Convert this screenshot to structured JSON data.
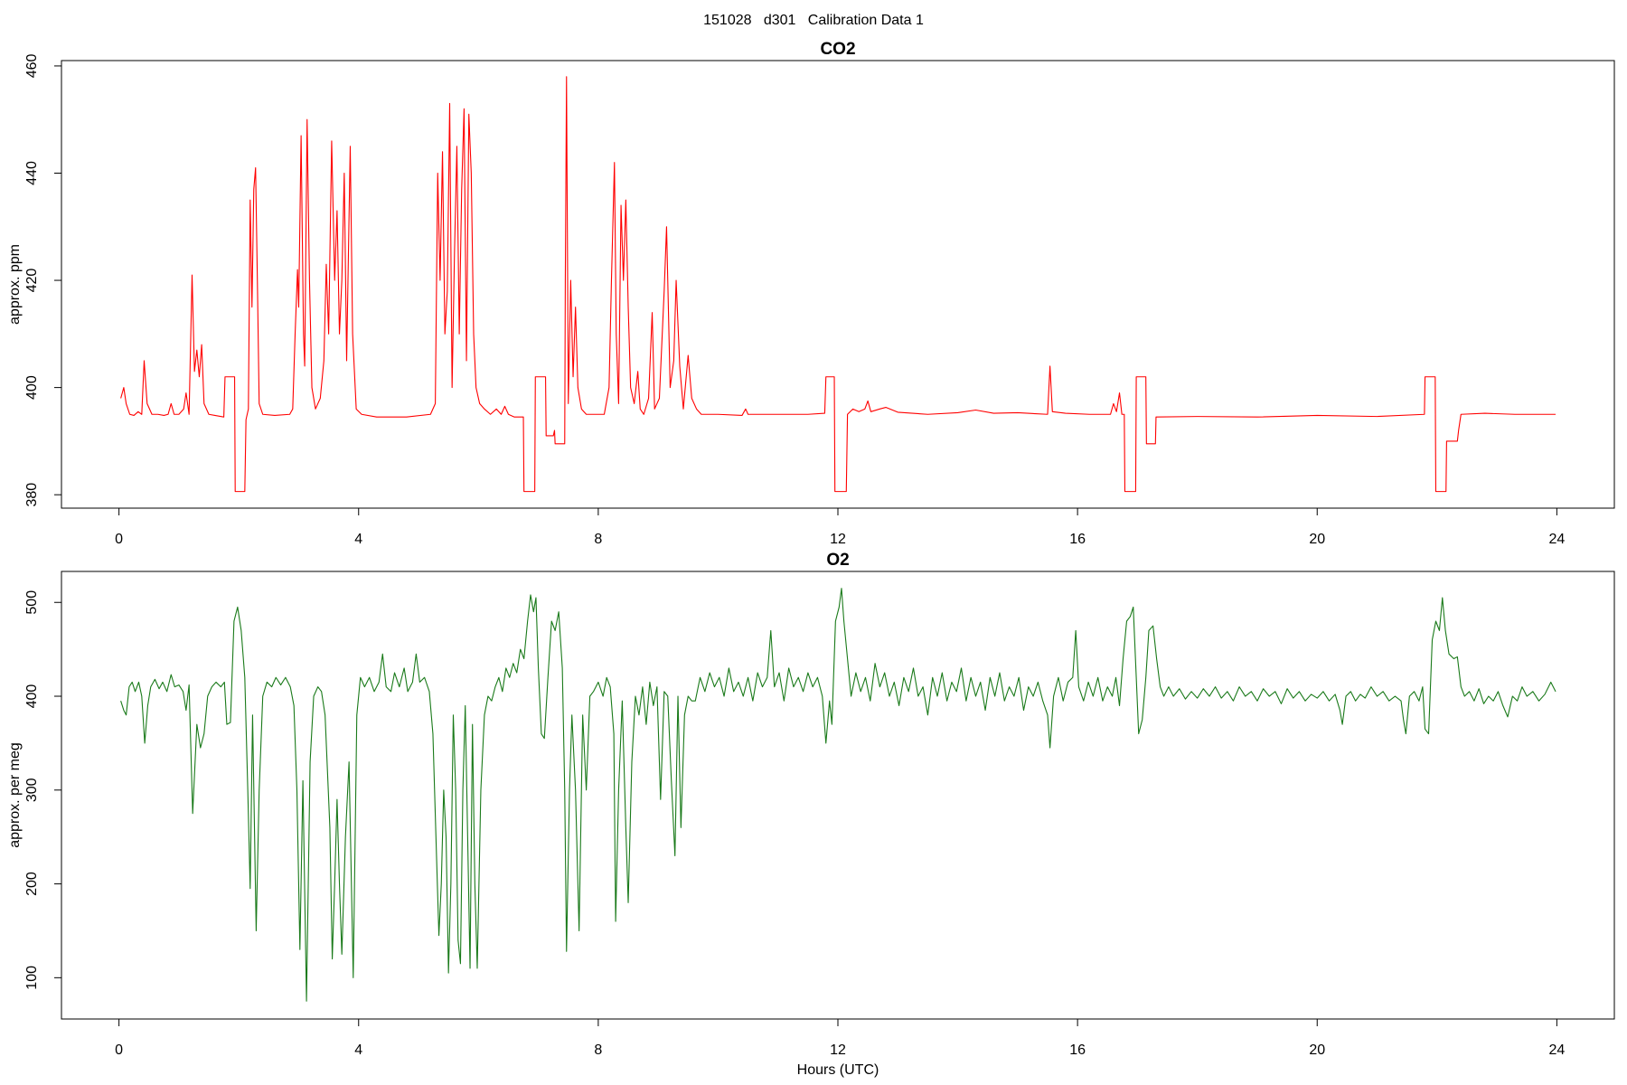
{
  "title": "151028   d301   Calibration Data 1",
  "chart_data": [
    {
      "type": "line",
      "title": "CO2",
      "y_label": "approx. ppm",
      "color": "#ff0000",
      "xlim": [
        -0.96,
        24.96
      ],
      "ylim": [
        377.5,
        461
      ],
      "xticks": [
        0,
        4,
        8,
        12,
        16,
        20,
        24
      ],
      "yticks": [
        380,
        400,
        420,
        440,
        460
      ],
      "x": [
        0.03,
        0.08,
        0.12,
        0.18,
        0.25,
        0.32,
        0.38,
        0.42,
        0.47,
        0.55,
        0.65,
        0.75,
        0.82,
        0.87,
        0.92,
        1.0,
        1.08,
        1.12,
        1.17,
        1.22,
        1.26,
        1.3,
        1.34,
        1.38,
        1.42,
        1.5,
        1.6,
        1.75,
        1.77,
        1.93,
        1.94,
        2.1,
        2.12,
        2.16,
        2.19,
        2.22,
        2.25,
        2.28,
        2.31,
        2.34,
        2.4,
        2.6,
        2.85,
        2.9,
        2.94,
        2.98,
        3.0,
        3.04,
        3.08,
        3.1,
        3.14,
        3.18,
        3.22,
        3.28,
        3.36,
        3.42,
        3.46,
        3.5,
        3.55,
        3.6,
        3.64,
        3.68,
        3.72,
        3.76,
        3.8,
        3.86,
        3.9,
        3.96,
        4.05,
        4.3,
        4.8,
        5.2,
        5.28,
        5.32,
        5.36,
        5.4,
        5.44,
        5.48,
        5.52,
        5.56,
        5.6,
        5.64,
        5.68,
        5.72,
        5.76,
        5.8,
        5.84,
        5.88,
        5.92,
        5.96,
        6.02,
        6.1,
        6.2,
        6.3,
        6.38,
        6.44,
        6.5,
        6.6,
        6.75,
        6.76,
        6.94,
        6.95,
        7.12,
        7.13,
        7.25,
        7.27,
        7.28,
        7.44,
        7.45,
        7.47,
        7.5,
        7.54,
        7.58,
        7.62,
        7.66,
        7.72,
        7.8,
        8.1,
        8.18,
        8.22,
        8.27,
        8.3,
        8.34,
        8.38,
        8.42,
        8.46,
        8.5,
        8.54,
        8.6,
        8.66,
        8.7,
        8.76,
        8.84,
        8.9,
        8.94,
        9.02,
        9.1,
        9.14,
        9.2,
        9.26,
        9.3,
        9.36,
        9.42,
        9.5,
        9.56,
        9.64,
        9.72,
        10.0,
        10.4,
        10.46,
        10.5,
        11.0,
        11.5,
        11.78,
        11.8,
        11.94,
        11.95,
        12.14,
        12.16,
        12.25,
        12.35,
        12.45,
        12.5,
        12.55,
        12.7,
        12.8,
        13.0,
        13.5,
        14.0,
        14.3,
        14.6,
        15.0,
        15.5,
        15.54,
        15.58,
        15.8,
        16.2,
        16.55,
        16.6,
        16.65,
        16.7,
        16.74,
        16.78,
        16.79,
        16.97,
        16.98,
        17.14,
        17.15,
        17.3,
        17.31,
        18.0,
        19.0,
        20.0,
        21.0,
        21.79,
        21.8,
        21.97,
        21.98,
        22.15,
        22.16,
        22.34,
        22.36,
        22.4,
        22.8,
        23.3,
        23.98
      ],
      "values": [
        398,
        400,
        397,
        395,
        394.8,
        395.5,
        395,
        405,
        397,
        395,
        395,
        394.8,
        395,
        397,
        395,
        395,
        396,
        399,
        395,
        421,
        403,
        407,
        402,
        408,
        397,
        395,
        394.8,
        394.5,
        402,
        402,
        380.6,
        380.6,
        394,
        396,
        435,
        415,
        437,
        441,
        420,
        397,
        395,
        394.8,
        395,
        396,
        410,
        422,
        415,
        447,
        410,
        404,
        450,
        420,
        400,
        396,
        398,
        405,
        423,
        410,
        446,
        420,
        433,
        410,
        420,
        440,
        405,
        445,
        410,
        396,
        395,
        394.5,
        394.5,
        395,
        397,
        440,
        420,
        444,
        410,
        418,
        453,
        400,
        425,
        445,
        410,
        437,
        452,
        405,
        451,
        440,
        410,
        400,
        397,
        396,
        395,
        396,
        395,
        396.5,
        395,
        394.5,
        394.5,
        380.6,
        380.6,
        402,
        402,
        391,
        391,
        392,
        389.5,
        389.5,
        420,
        458,
        397,
        420,
        402,
        415,
        400,
        396,
        395,
        395,
        400,
        420,
        442,
        410,
        397,
        434,
        420,
        435,
        415,
        400,
        397,
        403,
        396,
        395,
        398,
        414,
        396,
        398,
        418,
        430,
        400,
        405,
        420,
        404,
        396,
        406,
        398,
        396,
        395,
        395,
        394.8,
        396,
        395,
        395,
        395,
        395.2,
        402,
        402,
        380.6,
        380.6,
        395,
        396,
        395.5,
        396,
        397.5,
        395.5,
        396,
        396.3,
        395.4,
        395,
        395.3,
        395.8,
        395.2,
        395.3,
        395,
        404,
        395.5,
        395.2,
        395,
        395,
        397,
        395.5,
        399,
        395,
        395,
        380.6,
        380.6,
        402,
        402,
        389.5,
        389.5,
        394.5,
        394.6,
        394.5,
        394.8,
        394.6,
        395,
        402,
        402,
        380.6,
        380.6,
        390,
        390,
        392,
        395,
        395.2,
        395,
        395
      ]
    },
    {
      "type": "line",
      "title": "O2",
      "y_label": "approx. per meg",
      "x_label": "Hours (UTC)",
      "color": "#1a7a1a",
      "xlim": [
        -0.96,
        24.96
      ],
      "ylim": [
        56,
        533
      ],
      "xticks": [
        0,
        4,
        8,
        12,
        16,
        20,
        24
      ],
      "yticks": [
        100,
        200,
        300,
        400,
        500
      ],
      "x": [
        0.03,
        0.08,
        0.12,
        0.17,
        0.22,
        0.27,
        0.33,
        0.38,
        0.43,
        0.48,
        0.53,
        0.6,
        0.67,
        0.73,
        0.8,
        0.87,
        0.93,
        1.0,
        1.07,
        1.12,
        1.17,
        1.23,
        1.3,
        1.36,
        1.42,
        1.48,
        1.55,
        1.62,
        1.7,
        1.76,
        1.8,
        1.86,
        1.92,
        1.98,
        2.04,
        2.1,
        2.15,
        2.19,
        2.23,
        2.29,
        2.34,
        2.4,
        2.47,
        2.55,
        2.62,
        2.7,
        2.78,
        2.86,
        2.92,
        2.97,
        3.02,
        3.07,
        3.13,
        3.19,
        3.25,
        3.32,
        3.38,
        3.44,
        3.48,
        3.52,
        3.56,
        3.6,
        3.64,
        3.68,
        3.72,
        3.78,
        3.84,
        3.91,
        3.97,
        4.03,
        4.1,
        4.18,
        4.26,
        4.34,
        4.4,
        4.46,
        4.54,
        4.6,
        4.68,
        4.76,
        4.82,
        4.9,
        4.96,
        5.02,
        5.1,
        5.18,
        5.24,
        5.3,
        5.34,
        5.38,
        5.42,
        5.46,
        5.5,
        5.54,
        5.58,
        5.62,
        5.66,
        5.7,
        5.74,
        5.78,
        5.82,
        5.86,
        5.9,
        5.94,
        5.98,
        6.04,
        6.1,
        6.16,
        6.22,
        6.28,
        6.34,
        6.4,
        6.46,
        6.52,
        6.58,
        6.64,
        6.7,
        6.76,
        6.82,
        6.87,
        6.92,
        6.96,
        7.0,
        7.05,
        7.1,
        7.16,
        7.22,
        7.28,
        7.34,
        7.4,
        7.44,
        7.47,
        7.52,
        7.56,
        7.62,
        7.68,
        7.74,
        7.8,
        7.86,
        7.92,
        8.0,
        8.08,
        8.14,
        8.2,
        8.26,
        8.29,
        8.34,
        8.4,
        8.46,
        8.5,
        8.56,
        8.62,
        8.68,
        8.74,
        8.8,
        8.86,
        8.92,
        8.98,
        9.04,
        9.1,
        9.16,
        9.22,
        9.28,
        9.33,
        9.38,
        9.44,
        9.5,
        9.56,
        9.62,
        9.7,
        9.78,
        9.86,
        9.94,
        10.02,
        10.1,
        10.18,
        10.26,
        10.34,
        10.42,
        10.5,
        10.58,
        10.66,
        10.74,
        10.82,
        10.88,
        10.94,
        11.02,
        11.1,
        11.18,
        11.26,
        11.34,
        11.42,
        11.5,
        11.58,
        11.66,
        11.74,
        11.8,
        11.86,
        11.9,
        11.96,
        12.02,
        12.06,
        12.1,
        12.16,
        12.22,
        12.3,
        12.38,
        12.46,
        12.54,
        12.62,
        12.7,
        12.78,
        12.86,
        12.94,
        13.02,
        13.1,
        13.18,
        13.26,
        13.34,
        13.42,
        13.5,
        13.58,
        13.66,
        13.74,
        13.82,
        13.9,
        13.98,
        14.06,
        14.14,
        14.22,
        14.3,
        14.38,
        14.46,
        14.54,
        14.62,
        14.7,
        14.78,
        14.86,
        14.94,
        15.02,
        15.1,
        15.18,
        15.26,
        15.34,
        15.42,
        15.5,
        15.54,
        15.6,
        15.68,
        15.76,
        15.84,
        15.92,
        15.97,
        16.02,
        16.1,
        16.18,
        16.26,
        16.34,
        16.42,
        16.5,
        16.58,
        16.64,
        16.7,
        16.76,
        16.82,
        16.88,
        16.93,
        16.98,
        17.02,
        17.08,
        17.14,
        17.19,
        17.26,
        17.32,
        17.38,
        17.44,
        17.52,
        17.6,
        17.7,
        17.8,
        17.9,
        18.0,
        18.1,
        18.2,
        18.3,
        18.4,
        18.5,
        18.6,
        18.7,
        18.8,
        18.9,
        19.0,
        19.1,
        19.2,
        19.3,
        19.4,
        19.5,
        19.6,
        19.7,
        19.8,
        19.9,
        20.0,
        20.1,
        20.2,
        20.3,
        20.38,
        20.42,
        20.48,
        20.56,
        20.64,
        20.72,
        20.8,
        20.9,
        21.0,
        21.1,
        21.2,
        21.3,
        21.4,
        21.44,
        21.48,
        21.54,
        21.62,
        21.7,
        21.76,
        21.8,
        21.86,
        21.92,
        21.98,
        22.04,
        22.09,
        22.14,
        22.2,
        22.28,
        22.34,
        22.4,
        22.46,
        22.54,
        22.62,
        22.7,
        22.78,
        22.86,
        22.94,
        23.02,
        23.1,
        23.18,
        23.26,
        23.34,
        23.42,
        23.5,
        23.6,
        23.7,
        23.8,
        23.9,
        23.98
      ],
      "values": [
        395,
        385,
        380,
        410,
        415,
        405,
        415,
        400,
        350,
        390,
        410,
        418,
        408,
        415,
        405,
        423,
        410,
        412,
        405,
        385,
        412,
        275,
        370,
        345,
        360,
        400,
        410,
        415,
        410,
        415,
        370,
        372,
        480,
        495,
        470,
        420,
        300,
        195,
        380,
        150,
        300,
        400,
        415,
        410,
        420,
        412,
        420,
        410,
        390,
        300,
        130,
        310,
        75,
        330,
        400,
        410,
        405,
        380,
        320,
        260,
        120,
        200,
        290,
        200,
        125,
        250,
        330,
        100,
        380,
        420,
        410,
        420,
        405,
        415,
        445,
        410,
        405,
        425,
        410,
        430,
        405,
        415,
        445,
        415,
        420,
        405,
        360,
        230,
        145,
        200,
        300,
        250,
        105,
        200,
        380,
        300,
        140,
        115,
        300,
        390,
        250,
        110,
        370,
        200,
        110,
        300,
        380,
        400,
        395,
        410,
        420,
        405,
        430,
        420,
        435,
        425,
        450,
        440,
        480,
        508,
        490,
        505,
        430,
        360,
        355,
        420,
        480,
        470,
        490,
        430,
        300,
        128,
        300,
        380,
        300,
        150,
        380,
        300,
        400,
        405,
        415,
        400,
        420,
        410,
        360,
        160,
        300,
        395,
        260,
        180,
        330,
        400,
        380,
        410,
        370,
        415,
        390,
        410,
        290,
        405,
        400,
        310,
        230,
        400,
        260,
        380,
        400,
        395,
        395,
        420,
        405,
        425,
        410,
        420,
        400,
        430,
        405,
        415,
        400,
        420,
        395,
        425,
        410,
        420,
        470,
        410,
        425,
        395,
        430,
        410,
        420,
        405,
        425,
        410,
        420,
        400,
        350,
        395,
        370,
        480,
        495,
        515,
        480,
        440,
        400,
        425,
        405,
        420,
        395,
        435,
        410,
        425,
        400,
        415,
        390,
        420,
        405,
        430,
        400,
        410,
        380,
        420,
        400,
        425,
        395,
        415,
        405,
        430,
        395,
        420,
        400,
        415,
        385,
        420,
        400,
        425,
        395,
        410,
        400,
        420,
        385,
        410,
        400,
        415,
        395,
        380,
        345,
        400,
        420,
        395,
        415,
        420,
        470,
        410,
        395,
        415,
        400,
        420,
        395,
        410,
        400,
        420,
        390,
        440,
        480,
        485,
        495,
        420,
        360,
        375,
        420,
        470,
        475,
        440,
        410,
        400,
        410,
        400,
        408,
        397,
        405,
        398,
        408,
        400,
        410,
        398,
        405,
        395,
        410,
        400,
        405,
        395,
        408,
        400,
        405,
        392,
        408,
        398,
        405,
        395,
        402,
        398,
        405,
        395,
        402,
        385,
        370,
        400,
        405,
        395,
        402,
        398,
        410,
        400,
        405,
        395,
        400,
        395,
        375,
        360,
        400,
        405,
        395,
        410,
        365,
        360,
        460,
        480,
        470,
        505,
        470,
        445,
        440,
        442,
        410,
        400,
        405,
        395,
        408,
        392,
        400,
        395,
        405,
        390,
        378,
        400,
        395,
        410,
        400,
        405,
        395,
        402,
        415,
        405
      ]
    }
  ]
}
